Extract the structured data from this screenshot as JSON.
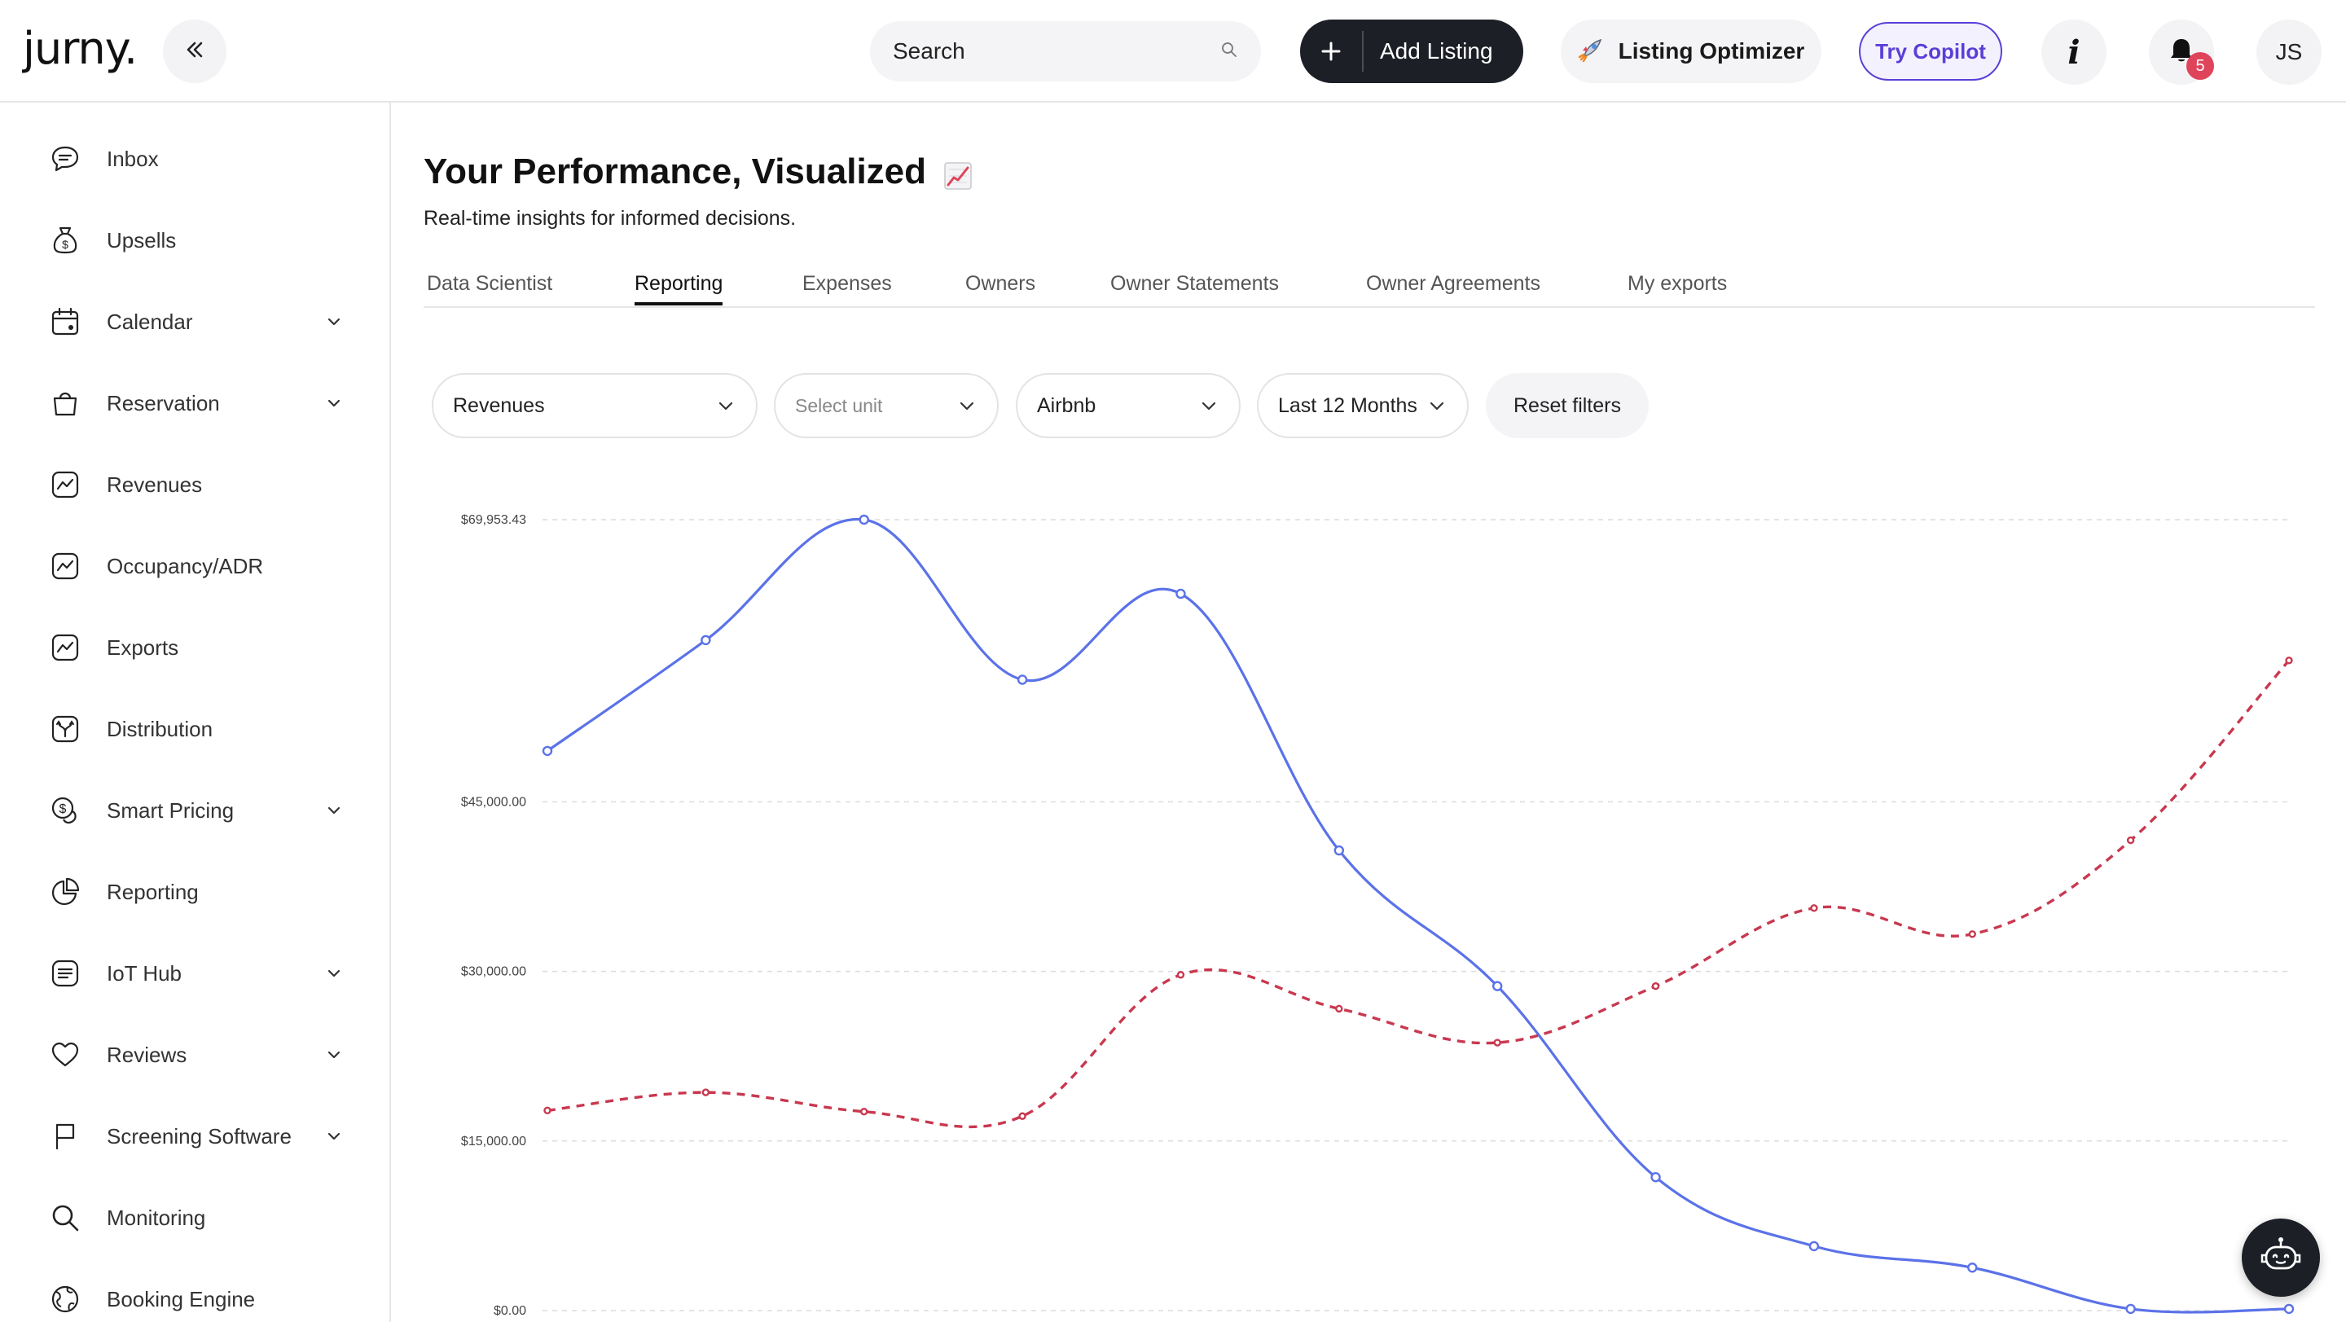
{
  "header": {
    "logo": "jurny.",
    "search_placeholder": "Search",
    "add_listing": "Add Listing",
    "listing_optimizer": "Listing Optimizer",
    "try_copilot": "Try Copilot",
    "info": "i",
    "notifications_count": "5",
    "avatar_initials": "JS"
  },
  "sidebar": {
    "items": [
      {
        "label": "Inbox",
        "icon": "chat-bubble-icon",
        "expandable": false
      },
      {
        "label": "Upsells",
        "icon": "money-bag-icon",
        "expandable": false
      },
      {
        "label": "Calendar",
        "icon": "calendar-icon",
        "expandable": true
      },
      {
        "label": "Reservation",
        "icon": "shopping-bag-icon",
        "expandable": true
      },
      {
        "label": "Revenues",
        "icon": "trend-chart-icon",
        "expandable": false
      },
      {
        "label": "Occupancy/ADR",
        "icon": "trend-chart-icon",
        "expandable": false
      },
      {
        "label": "Exports",
        "icon": "trend-chart-icon",
        "expandable": false
      },
      {
        "label": "Distribution",
        "icon": "distribution-icon",
        "expandable": false
      },
      {
        "label": "Smart Pricing",
        "icon": "dollar-coin-icon",
        "expandable": true
      },
      {
        "label": "Reporting",
        "icon": "pie-chart-icon",
        "expandable": false
      },
      {
        "label": "IoT Hub",
        "icon": "iot-hub-icon",
        "expandable": true
      },
      {
        "label": "Reviews",
        "icon": "heart-icon",
        "expandable": true
      },
      {
        "label": "Screening Software",
        "icon": "flag-icon",
        "expandable": true
      },
      {
        "label": "Monitoring",
        "icon": "magnifier-icon",
        "expandable": false
      },
      {
        "label": "Booking Engine",
        "icon": "globe-icon",
        "expandable": false
      }
    ]
  },
  "main": {
    "title": "Your Performance, Visualized",
    "subtitle": "Real-time insights for informed decisions.",
    "tabs": [
      {
        "label": "Data Scientist",
        "active": false
      },
      {
        "label": "Reporting",
        "active": true
      },
      {
        "label": "Expenses",
        "active": false
      },
      {
        "label": "Owners",
        "active": false
      },
      {
        "label": "Owner Statements",
        "active": false
      },
      {
        "label": "Owner Agreements",
        "active": false
      },
      {
        "label": "My exports",
        "active": false
      }
    ],
    "filters": {
      "metric": "Revenues",
      "unit_placeholder": "Select unit",
      "channel": "Airbnb",
      "period": "Last 12 Months",
      "reset": "Reset filters"
    }
  },
  "colors": {
    "primary_dark": "#1c1f26",
    "copilot_purple": "#5b3fd6",
    "badge_red": "#e0445a",
    "series_current": "#5b72e8",
    "series_previous": "#c8384f"
  },
  "chart_data": {
    "type": "line",
    "y_ticks": [
      "$69,953.43",
      "$45,000.00",
      "$30,000.00",
      "$15,000.00",
      "$0.00"
    ],
    "ylim": [
      0,
      69953.43
    ],
    "grid": true,
    "series": [
      {
        "style": "solid",
        "values": [
          49500,
          59300,
          69953.43,
          55800,
          63400,
          40700,
          28700,
          11800,
          5700,
          3800,
          150,
          150
        ]
      },
      {
        "style": "dashed",
        "values": [
          17700,
          19300,
          17600,
          17200,
          29700,
          26700,
          23700,
          28700,
          35600,
          33300,
          41600,
          57500
        ]
      }
    ]
  }
}
